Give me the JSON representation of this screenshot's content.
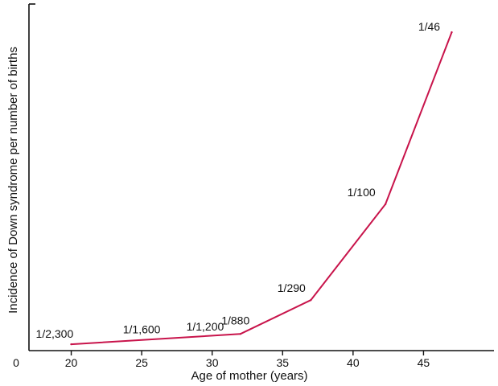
{
  "chart_data": {
    "type": "line",
    "title": "",
    "xlabel": "Age of mother (years)",
    "ylabel": "Incidence of Down syndrome per number of births",
    "x_ticks": [
      "20",
      "25",
      "30",
      "35",
      "40",
      "45"
    ],
    "origin_label": "0",
    "xlim": [
      17,
      50
    ],
    "ylim": [
      0,
      0.0235
    ],
    "grid": false,
    "series": [
      {
        "color": "#c8144b",
        "points": [
          {
            "x": 20,
            "y": 0.000435,
            "label": "1/2,300"
          },
          {
            "x": 32,
            "y": 0.001136,
            "label": "1/880"
          },
          {
            "x": 37,
            "y": 0.003448,
            "label": "1/290"
          },
          {
            "x": 42.3,
            "y": 0.01,
            "label": "1/100"
          },
          {
            "x": 47,
            "y": 0.021739,
            "label": "1/46"
          }
        ]
      }
    ],
    "annotations": [
      {
        "x": 25,
        "y": 0.000625,
        "text": "1/1,600"
      },
      {
        "x": 29.5,
        "y": 0.000833,
        "text": "1/1,200"
      }
    ],
    "colors": {
      "line": "#c8144b",
      "axis": "#111111",
      "text": "#111111"
    }
  }
}
